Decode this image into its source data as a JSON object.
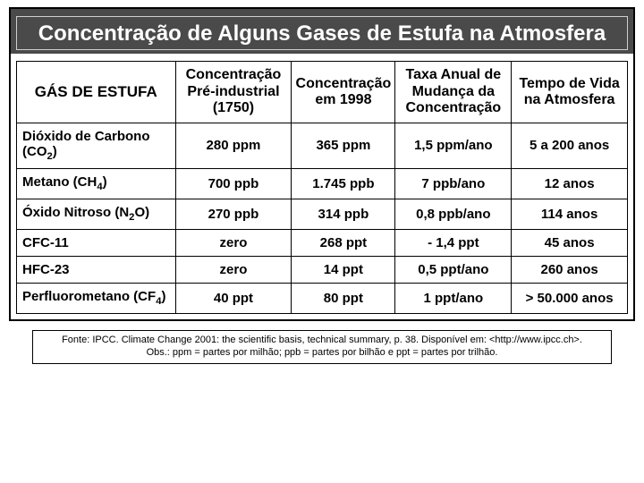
{
  "title": "Concentração de Alguns Gases de Estufa na Atmosfera",
  "table": {
    "columns": [
      "GÁS DE ESTUFA",
      "Concentração Pré-industrial (1750)",
      "Concentração em 1998",
      "Taxa Anual de Mudança da Concentração",
      "Tempo de Vida na Atmosfera"
    ],
    "column_fontsize": 16,
    "cell_fontsize": 15,
    "border_color": "#000000",
    "header_bg": "#ffffff",
    "row_bg": "#ffffff",
    "text_color": "#000000",
    "col_widths_pct": [
      26,
      19,
      17,
      19,
      19
    ],
    "rows": [
      {
        "name_html": "Dióxido de Carbono (CO<sub>2</sub>)",
        "pre": "280 ppm",
        "c1998": "365 ppm",
        "rate": "1,5 ppm/ano",
        "life": "5 a 200 anos"
      },
      {
        "name_html": "Metano (CH<sub>4</sub>)",
        "pre": "700 ppb",
        "c1998": "1.745 ppb",
        "rate": "7 ppb/ano",
        "life": "12 anos"
      },
      {
        "name_html": "Óxido Nitroso (N<sub>2</sub>O)",
        "pre": "270 ppb",
        "c1998": "314 ppb",
        "rate": "0,8 ppb/ano",
        "life": "114 anos"
      },
      {
        "name_html": "CFC-11",
        "pre": "zero",
        "c1998": "268 ppt",
        "rate": "- 1,4 ppt",
        "life": "45 anos"
      },
      {
        "name_html": "HFC-23",
        "pre": "zero",
        "c1998": "14 ppt",
        "rate": "0,5 ppt/ano",
        "life": "260 anos"
      },
      {
        "name_html": "Perfluorometano (CF<sub>4</sub>)",
        "pre": "40 ppt",
        "c1998": "80 ppt",
        "rate": "1 ppt/ano",
        "life": "> 50.000 anos"
      }
    ]
  },
  "title_style": {
    "band_bg": "#4a4a4a",
    "band_text_color": "#ffffff",
    "inner_border_color": "#cfcfcf",
    "fontsize": 24,
    "fontweight": "bold"
  },
  "source": {
    "line1": "Fonte: IPCC. Climate Change 2001: the scientific basis, technical summary, p. 38. Disponível em: <http://www.ipcc.ch>.",
    "line2": "Obs.: ppm = partes por milhão; ppb = partes por bilhão e ppt = partes por trilhão.",
    "fontsize": 11,
    "border_color": "#000000"
  },
  "page": {
    "background_color": "#ffffff",
    "outer_border_color": "#000000"
  }
}
